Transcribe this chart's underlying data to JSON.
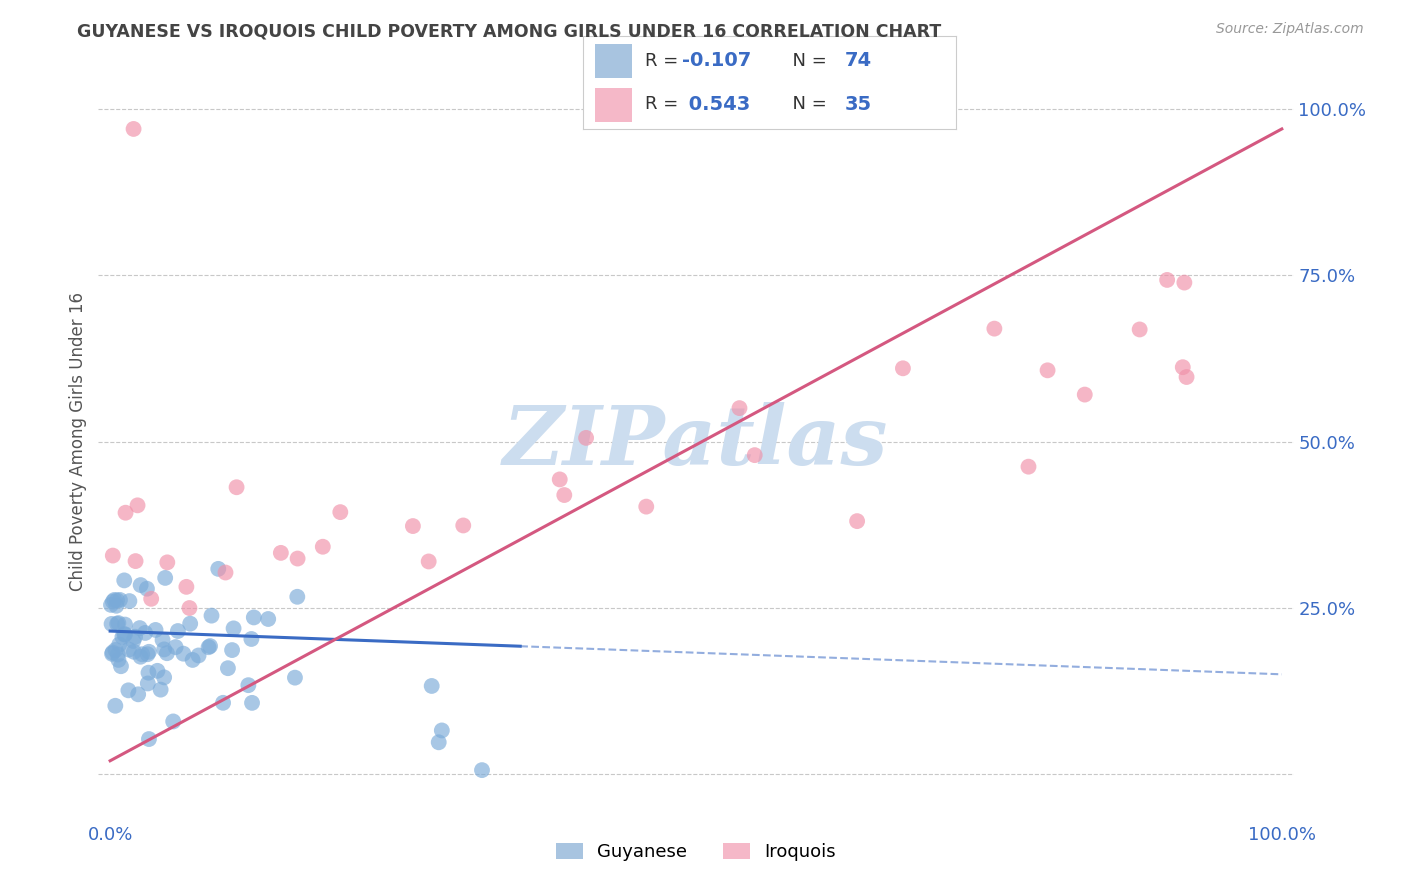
{
  "title": "GUYANESE VS IROQUOIS CHILD POVERTY AMONG GIRLS UNDER 16 CORRELATION CHART",
  "source": "Source: ZipAtlas.com",
  "ylabel": "Child Poverty Among Girls Under 16",
  "legend_blue_label": "Guyanese",
  "legend_pink_label": "Iroquois",
  "blue_color": "#a8c4e0",
  "blue_line_color": "#3a6bc4",
  "blue_scatter_color": "#7aaad8",
  "pink_color": "#f5b8c8",
  "pink_line_color": "#d45880",
  "pink_scatter_color": "#f090a8",
  "background_color": "#ffffff",
  "grid_color": "#c8c8c8",
  "title_color": "#444444",
  "axis_label_color": "#3a6bc4",
  "watermark_color": "#ccddef",
  "blue_n": 74,
  "pink_n": 35,
  "blue_R": -0.107,
  "pink_R": 0.543
}
